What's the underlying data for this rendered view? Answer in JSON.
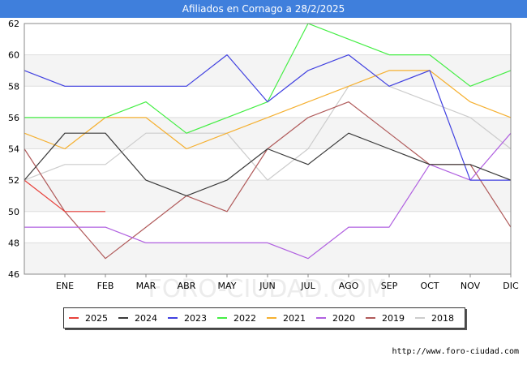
{
  "title": "Afiliados en Cornago a 28/2/2025",
  "footer_url": "http://www.foro-ciudad.com",
  "watermark": "FORO-CIUDAD.COM",
  "chart_data": {
    "type": "line",
    "title": "Afiliados en Cornago a 28/2/2025",
    "xlabel": "",
    "ylabel": "",
    "x_ticks": [
      "ENE",
      "FEB",
      "MAR",
      "ABR",
      "MAY",
      "JUN",
      "JUL",
      "AGO",
      "SEP",
      "OCT",
      "NOV",
      "DIC"
    ],
    "ylim": [
      46,
      62
    ],
    "y_ticks": [
      46,
      48,
      50,
      52,
      54,
      56,
      58,
      60,
      62
    ],
    "grid": "horizontal",
    "legend_position": "bottom",
    "series": [
      {
        "name": "2025",
        "color": "#e8413b",
        "values": [
          52,
          50,
          50
        ]
      },
      {
        "name": "2024",
        "color": "#3a3a3a",
        "values": [
          52,
          55,
          55,
          52,
          51,
          52,
          54,
          53,
          55,
          54,
          53,
          53,
          52
        ]
      },
      {
        "name": "2023",
        "color": "#4040e0",
        "values": [
          59,
          58,
          58,
          58,
          58,
          60,
          57,
          59,
          60,
          58,
          59,
          52,
          52
        ]
      },
      {
        "name": "2022",
        "color": "#44ee44",
        "values": [
          56,
          56,
          56,
          57,
          55,
          56,
          57,
          62,
          61,
          60,
          60,
          58,
          59
        ]
      },
      {
        "name": "2021",
        "color": "#f5b030",
        "values": [
          55,
          54,
          56,
          56,
          54,
          55,
          56,
          57,
          58,
          59,
          59,
          57,
          56
        ]
      },
      {
        "name": "2020",
        "color": "#b060e0",
        "values": [
          49,
          49,
          49,
          48,
          48,
          48,
          48,
          47,
          49,
          49,
          53,
          52,
          55
        ]
      },
      {
        "name": "2019",
        "color": "#b05a5a",
        "values": [
          54,
          50,
          47,
          49,
          51,
          50,
          54,
          56,
          57,
          55,
          53,
          53,
          49
        ]
      },
      {
        "name": "2018",
        "color": "#cccccc",
        "values": [
          52,
          53,
          53,
          55,
          55,
          55,
          52,
          54,
          58,
          58,
          57,
          56,
          54
        ]
      }
    ]
  }
}
